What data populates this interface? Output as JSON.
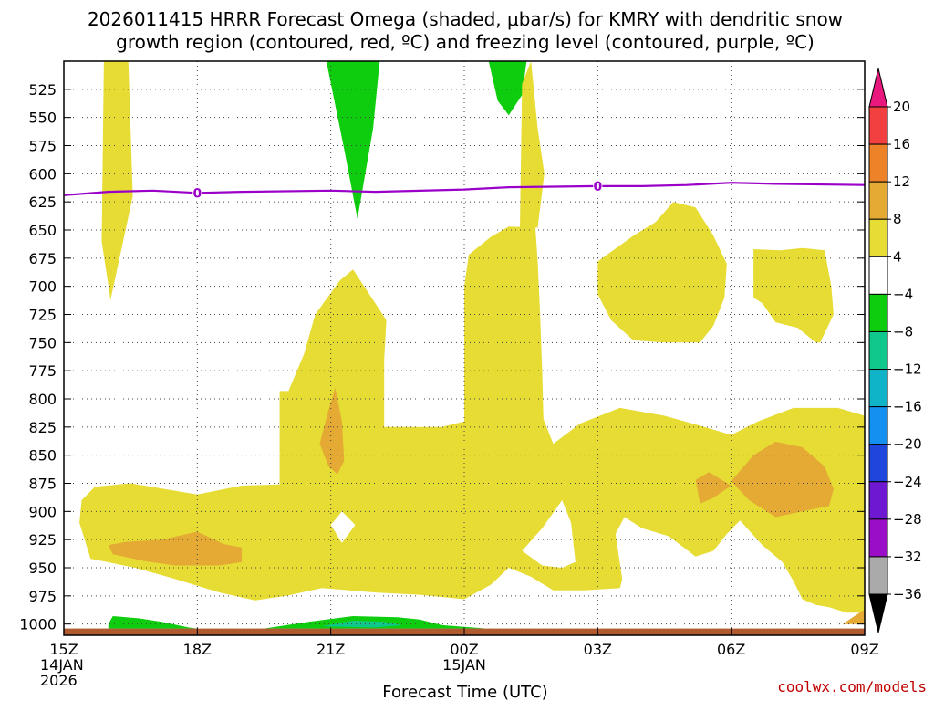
{
  "chart_data": {
    "type": "heatmap",
    "title_lines": [
      "2026011415 HRRR Forecast Omega (shaded, μbar/s) for KMRY with dendritic snow",
      "growth region (contoured, red, ºC) and freezing level (contoured, purple, ºC)"
    ],
    "xlabel": "Forecast Time (UTC)",
    "credit": "coolwx.com/models",
    "x_ticks": [
      {
        "t": 0,
        "lines": [
          "15Z",
          "14JAN",
          "2026"
        ]
      },
      {
        "t": 3,
        "lines": [
          "18Z"
        ]
      },
      {
        "t": 6,
        "lines": [
          "21Z"
        ]
      },
      {
        "t": 9,
        "lines": [
          "00Z",
          "15JAN"
        ]
      },
      {
        "t": 12,
        "lines": [
          "03Z"
        ]
      },
      {
        "t": 15,
        "lines": [
          "06Z"
        ]
      },
      {
        "t": 18,
        "lines": [
          "09Z"
        ]
      }
    ],
    "x_range_hours": [
      0,
      18
    ],
    "y_range_hpa": [
      500,
      1010
    ],
    "y_ticks": [
      525,
      550,
      575,
      600,
      625,
      650,
      675,
      700,
      725,
      750,
      775,
      800,
      825,
      850,
      875,
      900,
      925,
      950,
      975,
      1000
    ],
    "grid": true,
    "colorbar": {
      "levels": [
        -36,
        -32,
        -28,
        -24,
        -20,
        -16,
        -12,
        -8,
        -4,
        4,
        8,
        12,
        16,
        20
      ],
      "labels": [
        "20",
        "16",
        "12",
        "8",
        "4",
        "−4",
        "−8",
        "−12",
        "−16",
        "−20",
        "−24",
        "−28",
        "−32",
        "−36"
      ],
      "colors_top_to_bottom": [
        "#e8187c",
        "#f24040",
        "#ee8228",
        "#e4aa34",
        "#e6dc34",
        "#ffffff",
        "#0ecd0e",
        "#10c88c",
        "#10b4c8",
        "#1490f0",
        "#1e46dc",
        "#6e18d2",
        "#9a0ec8",
        "#aaaaaa",
        "#000000"
      ]
    },
    "freezing_level": {
      "label": "0",
      "color": "#9a00c8",
      "points": [
        [
          0,
          619
        ],
        [
          1,
          616
        ],
        [
          2,
          615
        ],
        [
          3,
          617
        ],
        [
          4,
          616
        ],
        [
          6,
          615
        ],
        [
          7,
          616
        ],
        [
          9,
          614
        ],
        [
          10,
          612
        ],
        [
          12,
          611
        ],
        [
          13,
          611
        ],
        [
          14,
          610
        ],
        [
          15,
          608
        ],
        [
          16,
          609
        ],
        [
          18,
          610
        ]
      ],
      "label_positions": [
        [
          3,
          617
        ],
        [
          12,
          611
        ]
      ]
    },
    "regions": [
      {
        "value": 6,
        "color": "#e6dc34",
        "points": [
          [
            0.9,
            500
          ],
          [
            1.45,
            500
          ],
          [
            1.55,
            620
          ],
          [
            1.05,
            712
          ],
          [
            0.85,
            660
          ],
          [
            0.9,
            500
          ]
        ]
      },
      {
        "value": -6,
        "color": "#0ecd0e",
        "points": [
          [
            5.9,
            500
          ],
          [
            7.1,
            500
          ],
          [
            6.95,
            560
          ],
          [
            6.6,
            640
          ],
          [
            6.3,
            578
          ],
          [
            5.9,
            500
          ]
        ]
      },
      {
        "value": -6,
        "color": "#0ecd0e",
        "points": [
          [
            6.35,
            500
          ],
          [
            6.75,
            500
          ],
          [
            6.55,
            560
          ],
          [
            6.35,
            500
          ]
        ]
      },
      {
        "value": -6,
        "color": "#0ecd0e",
        "points": [
          [
            9.55,
            500
          ],
          [
            10.4,
            500
          ],
          [
            10.3,
            530
          ],
          [
            10.0,
            548
          ],
          [
            9.75,
            535
          ],
          [
            9.55,
            500
          ]
        ]
      },
      {
        "value": 6,
        "color": "#e6dc34",
        "points": [
          [
            10.3,
            520
          ],
          [
            10.5,
            500
          ],
          [
            10.65,
            560
          ],
          [
            10.8,
            600
          ],
          [
            10.65,
            648
          ],
          [
            10.25,
            648
          ],
          [
            10.3,
            520
          ]
        ]
      },
      {
        "value": 6,
        "color": "#e6dc34",
        "points": [
          [
            0.4,
            890
          ],
          [
            0.7,
            878
          ],
          [
            1.5,
            875
          ],
          [
            3.0,
            885
          ],
          [
            4.0,
            877
          ],
          [
            4.85,
            876
          ],
          [
            4.85,
            795
          ],
          [
            4.85,
            793
          ],
          [
            5.05,
            793
          ],
          [
            5.4,
            760
          ],
          [
            5.65,
            725
          ],
          [
            6.2,
            695
          ],
          [
            6.5,
            685
          ],
          [
            7.25,
            730
          ],
          [
            7.2,
            765
          ],
          [
            7.2,
            825
          ],
          [
            8.5,
            825
          ],
          [
            9.0,
            820
          ],
          [
            9.0,
            700
          ],
          [
            9.1,
            672
          ],
          [
            9.6,
            656
          ],
          [
            10.0,
            647
          ],
          [
            10.6,
            648
          ],
          [
            10.65,
            678
          ],
          [
            10.7,
            720
          ],
          [
            10.75,
            775
          ],
          [
            10.78,
            818
          ],
          [
            11.0,
            840
          ],
          [
            11.6,
            822
          ],
          [
            12.5,
            808
          ],
          [
            13.5,
            815
          ],
          [
            14.4,
            825
          ],
          [
            15.0,
            832
          ],
          [
            15.6,
            820
          ],
          [
            16.4,
            808
          ],
          [
            17.4,
            808
          ],
          [
            18,
            815
          ],
          [
            18,
            990
          ],
          [
            17.6,
            990
          ],
          [
            17.2,
            985
          ],
          [
            16.9,
            983
          ],
          [
            16.6,
            978
          ],
          [
            16.4,
            962
          ],
          [
            16.15,
            945
          ],
          [
            15.7,
            930
          ],
          [
            15.2,
            908
          ],
          [
            14.9,
            920
          ],
          [
            14.6,
            935
          ],
          [
            14.2,
            940
          ],
          [
            13.6,
            922
          ],
          [
            13.0,
            915
          ],
          [
            12.6,
            905
          ],
          [
            12.4,
            920
          ],
          [
            12.55,
            960
          ],
          [
            12.5,
            968
          ],
          [
            11.7,
            970
          ],
          [
            11.0,
            970
          ],
          [
            10.5,
            958
          ],
          [
            10.0,
            950
          ],
          [
            9.6,
            965
          ],
          [
            9.0,
            978
          ],
          [
            8.0,
            974
          ],
          [
            7.0,
            972
          ],
          [
            6.4,
            970
          ],
          [
            5.8,
            968
          ],
          [
            5.0,
            975
          ],
          [
            4.3,
            979
          ],
          [
            3.5,
            972
          ],
          [
            2.5,
            960
          ],
          [
            1.6,
            950
          ],
          [
            0.6,
            942
          ],
          [
            0.35,
            910
          ],
          [
            0.4,
            890
          ]
        ]
      },
      {
        "value": 0,
        "color": "#ffffff",
        "points": [
          [
            6.0,
            912
          ],
          [
            6.25,
            900
          ],
          [
            6.55,
            912
          ],
          [
            6.25,
            928
          ],
          [
            6.0,
            912
          ]
        ]
      },
      {
        "value": 0,
        "color": "#ffffff",
        "points": [
          [
            10.3,
            935
          ],
          [
            10.75,
            915
          ],
          [
            11.2,
            890
          ],
          [
            11.4,
            910
          ],
          [
            11.5,
            945
          ],
          [
            11.2,
            950
          ],
          [
            10.75,
            948
          ],
          [
            10.3,
            935
          ]
        ]
      },
      {
        "value": 6,
        "color": "#e6dc34",
        "points": [
          [
            12.0,
            678
          ],
          [
            12.8,
            655
          ],
          [
            13.3,
            643
          ],
          [
            13.7,
            625
          ],
          [
            14.2,
            630
          ],
          [
            14.6,
            655
          ],
          [
            14.9,
            680
          ],
          [
            14.85,
            710
          ],
          [
            14.6,
            735
          ],
          [
            14.3,
            750
          ],
          [
            13.5,
            750
          ],
          [
            12.8,
            748
          ],
          [
            12.3,
            730
          ],
          [
            12.0,
            707
          ],
          [
            12.0,
            678
          ]
        ]
      },
      {
        "value": 6,
        "color": "#e6dc34",
        "points": [
          [
            15.5,
            667
          ],
          [
            16.1,
            668
          ],
          [
            16.6,
            666
          ],
          [
            17.1,
            668
          ],
          [
            17.25,
            700
          ],
          [
            17.3,
            725
          ],
          [
            17.0,
            750
          ],
          [
            16.9,
            750
          ],
          [
            16.5,
            737
          ],
          [
            16.0,
            732
          ],
          [
            15.7,
            715
          ],
          [
            15.5,
            710
          ],
          [
            15.5,
            667
          ]
        ]
      },
      {
        "value": 10,
        "color": "#e4aa34",
        "points": [
          [
            1.0,
            930
          ],
          [
            1.4,
            927
          ],
          [
            2.2,
            925
          ],
          [
            3.0,
            918
          ],
          [
            3.6,
            929
          ],
          [
            4.0,
            932
          ],
          [
            4.0,
            945
          ],
          [
            3.5,
            948
          ],
          [
            2.5,
            948
          ],
          [
            1.8,
            944
          ],
          [
            1.1,
            938
          ],
          [
            1.0,
            930
          ]
        ]
      },
      {
        "value": 10,
        "color": "#e4aa34",
        "points": [
          [
            5.75,
            840
          ],
          [
            5.95,
            810
          ],
          [
            6.1,
            790
          ],
          [
            6.25,
            820
          ],
          [
            6.3,
            855
          ],
          [
            6.15,
            867
          ],
          [
            5.95,
            860
          ],
          [
            5.75,
            840
          ]
        ]
      },
      {
        "value": 10,
        "color": "#e4aa34",
        "points": [
          [
            14.2,
            872
          ],
          [
            14.5,
            865
          ],
          [
            15.0,
            877
          ],
          [
            14.6,
            888
          ],
          [
            14.3,
            893
          ],
          [
            14.2,
            872
          ]
        ]
      },
      {
        "value": 10,
        "color": "#e4aa34",
        "points": [
          [
            15.0,
            873
          ],
          [
            15.5,
            850
          ],
          [
            16.0,
            838
          ],
          [
            16.6,
            843
          ],
          [
            17.1,
            860
          ],
          [
            17.3,
            880
          ],
          [
            17.2,
            895
          ],
          [
            16.6,
            900
          ],
          [
            16.0,
            905
          ],
          [
            15.4,
            890
          ],
          [
            15.0,
            873
          ]
        ]
      },
      {
        "value": 10,
        "color": "#e4aa34",
        "points": [
          [
            17.5,
            1000
          ],
          [
            18.0,
            987
          ],
          [
            18.0,
            1000
          ],
          [
            17.5,
            1000
          ]
        ]
      },
      {
        "value": -6,
        "color": "#0ecd0e",
        "points": [
          [
            1.0,
            1000
          ],
          [
            1.1,
            993
          ],
          [
            1.7,
            995
          ],
          [
            2.2,
            998
          ],
          [
            2.8,
            1003
          ],
          [
            3.0,
            1004
          ],
          [
            2.0,
            1004
          ],
          [
            1.0,
            1004
          ],
          [
            1.0,
            1000
          ]
        ]
      },
      {
        "value": -6,
        "color": "#0ecd0e",
        "points": [
          [
            4.5,
            1004
          ],
          [
            5.5,
            998
          ],
          [
            6.5,
            993
          ],
          [
            7.5,
            994
          ],
          [
            8.0,
            996
          ],
          [
            8.5,
            1001
          ],
          [
            9.5,
            1004
          ],
          [
            4.5,
            1004
          ]
        ]
      },
      {
        "value": -10,
        "color": "#10c88c",
        "points": [
          [
            5.8,
            1002
          ],
          [
            6.5,
            997
          ],
          [
            7.2,
            998
          ],
          [
            7.6,
            1001
          ],
          [
            7.0,
            1003
          ],
          [
            5.8,
            1002
          ]
        ]
      }
    ],
    "ground": {
      "color": "#b05a30",
      "from_hpa": 1004,
      "to_hpa": 1010
    }
  }
}
